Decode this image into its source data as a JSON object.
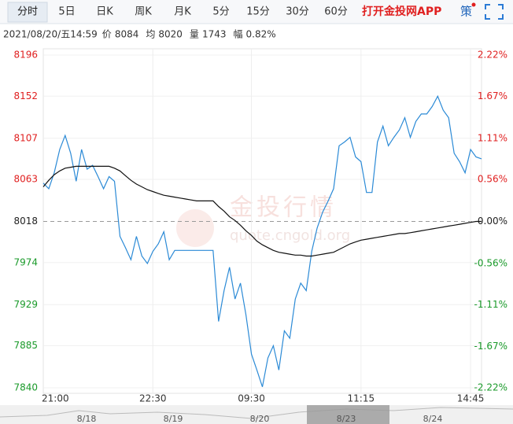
{
  "header": {
    "tabs": [
      "分时",
      "5日",
      "日K",
      "周K",
      "月K",
      "5分",
      "15分",
      "30分",
      "60分"
    ],
    "app_link": "打开金投网APP",
    "strategy": "策",
    "info": [
      "2021/08/20/五14:59",
      "价",
      "8084",
      "均",
      "8020",
      "量",
      "1743",
      "幅",
      "0.82%"
    ]
  },
  "watermark": [
    "金投行情",
    "quote.cngold.org"
  ],
  "navigator": {
    "dates": [
      "8/18",
      "8/19",
      "8/20",
      "8/23",
      "8/24"
    ]
  },
  "chart_data": {
    "type": "line",
    "categories": [
      "21:00",
      null,
      null,
      null,
      null,
      null,
      null,
      null,
      null,
      null,
      null,
      null,
      null,
      null,
      null,
      null,
      null,
      null,
      null,
      null,
      "22:30",
      null,
      null,
      null,
      null,
      null,
      null,
      null,
      null,
      null,
      null,
      null,
      null,
      null,
      null,
      null,
      null,
      null,
      "09:30",
      null,
      null,
      null,
      null,
      null,
      null,
      null,
      null,
      null,
      null,
      null,
      null,
      null,
      null,
      null,
      null,
      null,
      null,
      null,
      "11:15",
      null,
      null,
      null,
      null,
      null,
      null,
      null,
      null,
      null,
      null,
      null,
      null,
      null,
      null,
      null,
      null,
      null,
      null,
      null,
      "14:45",
      null,
      null
    ],
    "series": [
      {
        "name": "价",
        "color": "#2b8ad6",
        "values": [
          8059,
          8053,
          8070,
          8095,
          8110,
          8091,
          8061,
          8095,
          8074,
          8078,
          8066,
          8053,
          8066,
          8061,
          8002,
          7990,
          7977,
          8002,
          7981,
          7973,
          7986,
          7994,
          8007,
          7977,
          7987,
          7987,
          7987,
          7987,
          7987,
          7987,
          7987,
          7987,
          7911,
          7944,
          7969,
          7935,
          7952,
          7918,
          7876,
          7859,
          7841,
          7872,
          7885,
          7859,
          7901,
          7893,
          7935,
          7952,
          7944,
          7986,
          8011,
          8028,
          8040,
          8053,
          8099,
          8103,
          8108,
          8087,
          8082,
          8049,
          8049,
          8103,
          8120,
          8099,
          8108,
          8116,
          8129,
          8108,
          8125,
          8133,
          8133,
          8141,
          8152,
          8137,
          8129,
          8091,
          8082,
          8070,
          8095,
          8087,
          8085
        ]
      },
      {
        "name": "均",
        "color": "#111111",
        "values": [
          8055,
          8062,
          8068,
          8072,
          8075,
          8076,
          8077,
          8077,
          8077,
          8077,
          8077,
          8077,
          8077,
          8075,
          8072,
          8067,
          8062,
          8058,
          8055,
          8052,
          8050,
          8048,
          8046,
          8045,
          8044,
          8043,
          8042,
          8041,
          8040,
          8040,
          8040,
          8040,
          8034,
          8029,
          8023,
          8019,
          8014,
          8008,
          8003,
          7997,
          7993,
          7990,
          7987,
          7985,
          7984,
          7983,
          7982,
          7982,
          7981,
          7981,
          7982,
          7983,
          7984,
          7985,
          7988,
          7991,
          7994,
          7996,
          7998,
          7999,
          8000,
          8001,
          8002,
          8003,
          8004,
          8005,
          8005,
          8006,
          8007,
          8008,
          8009,
          8010,
          8011,
          8012,
          8013,
          8014,
          8015,
          8016,
          8017,
          8018,
          8018
        ]
      }
    ],
    "ylim": [
      7840,
      8196
    ],
    "yticks": [
      8196,
      8152,
      8107,
      8063,
      8018,
      7974,
      7929,
      7885,
      7840
    ],
    "y2lim": [
      -2.22,
      2.22
    ],
    "y2ticks": [
      {
        "value": 2.22,
        "label": "2.22%"
      },
      {
        "value": 1.67,
        "label": "1.67%"
      },
      {
        "value": 1.11,
        "label": "1.11%"
      },
      {
        "value": 0.56,
        "label": "0.56%"
      },
      {
        "value": 0,
        "label": "0.00%"
      },
      {
        "value": -0.56,
        "label": "-0.56%"
      },
      {
        "value": -1.11,
        "label": "-1.11%"
      },
      {
        "value": -1.67,
        "label": "-1.67%"
      },
      {
        "value": -2.22,
        "label": "-2.22%"
      }
    ],
    "baseline": 8018,
    "up_color": "#e02020",
    "down_color": "#1a9a2a",
    "grid": true
  }
}
